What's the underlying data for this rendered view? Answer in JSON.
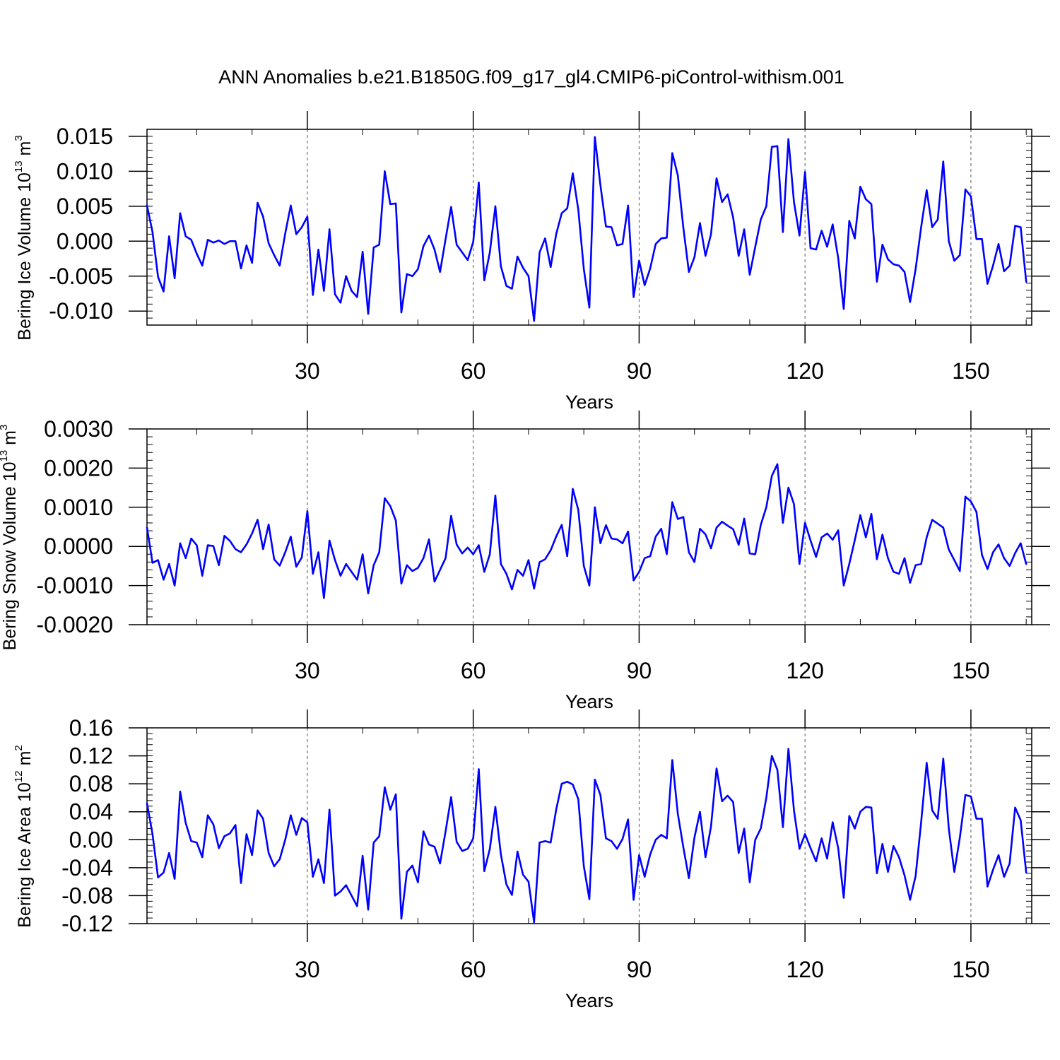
{
  "title": "ANN Anomalies b.e21.B1850G.f09_g17_gl4.CMIP6-piControl-withism.001",
  "chart_data": [
    {
      "type": "line",
      "title": "ANN Anomalies b.e21.B1850G.f09_g17_gl4.CMIP6-piControl-withism.001",
      "xlabel": "Years",
      "ylabel": {
        "main": "Bering Ice Volume 10",
        "sup": "13",
        "unit": " m",
        "unit_sup": "3"
      },
      "xlim": [
        1,
        161
      ],
      "ylim": [
        -0.012,
        0.016
      ],
      "xticks": [
        30,
        60,
        90,
        120,
        150
      ],
      "xtick_labels": [
        "30",
        "60",
        "90",
        "120",
        "150"
      ],
      "yticks": [
        -0.01,
        -0.005,
        0.0,
        0.005,
        0.01,
        0.015
      ],
      "ytick_labels": [
        "-0.010",
        "-0.005",
        "0.000",
        "0.005",
        "0.010",
        "0.015"
      ],
      "grid": "vertical dashed at x ticks",
      "series": [
        {
          "name": "Bering Ice Volume",
          "color": "#0000ff",
          "x_start": 1,
          "values": [
            0.0051,
            0.0013,
            -0.0051,
            -0.0072,
            0.0007,
            -0.0053,
            0.004,
            0.0007,
            0.0002,
            -0.0018,
            -0.0035,
            0.0002,
            -0.0002,
            0.0001,
            -0.0004,
            0.0,
            0.0,
            -0.0039,
            -0.0006,
            -0.0031,
            0.0055,
            0.0035,
            -0.0003,
            -0.002,
            -0.0035,
            0.0011,
            0.0051,
            0.001,
            0.002,
            0.0035,
            -0.0077,
            -0.0012,
            -0.0071,
            0.0017,
            -0.0076,
            -0.0088,
            -0.005,
            -0.0071,
            -0.008,
            -0.0015,
            -0.0104,
            -0.0009,
            -0.0005,
            0.01,
            0.0053,
            0.0054,
            -0.0102,
            -0.0047,
            -0.005,
            -0.004,
            -0.0007,
            0.0008,
            -0.0012,
            -0.0044,
            0.0003,
            0.0049,
            -0.0005,
            -0.0016,
            -0.0027,
            -0.0001,
            0.0084,
            -0.0056,
            -0.0016,
            0.005,
            -0.0036,
            -0.0064,
            -0.0068,
            -0.0022,
            -0.0038,
            -0.005,
            -0.0114,
            -0.0016,
            0.0004,
            -0.0037,
            0.001,
            0.004,
            0.0047,
            0.0097,
            0.0045,
            -0.004,
            -0.0095,
            0.0149,
            0.008,
            0.0021,
            0.002,
            -0.0006,
            -0.0004,
            0.0051,
            -0.008,
            -0.0028,
            -0.0063,
            -0.0039,
            -0.0004,
            0.0004,
            0.0005,
            0.0126,
            0.0094,
            0.0019,
            -0.0044,
            -0.0023,
            0.0026,
            -0.0021,
            0.001,
            0.009,
            0.0056,
            0.0067,
            0.0034,
            -0.0021,
            0.0017,
            -0.0048,
            -0.0008,
            0.0031,
            0.005,
            0.0135,
            0.0136,
            0.0013,
            0.0146,
            0.0056,
            0.0008,
            0.0099,
            -0.001,
            -0.0012,
            0.0015,
            -0.0008,
            0.0024,
            -0.0024,
            -0.0097,
            0.0029,
            0.0004,
            0.0078,
            0.006,
            0.0053,
            -0.0058,
            -0.0005,
            -0.0026,
            -0.0033,
            -0.0035,
            -0.0044,
            -0.0087,
            -0.004,
            0.002,
            0.0073,
            0.002,
            0.0031,
            0.0114,
            0.0,
            -0.0028,
            -0.002,
            0.0074,
            0.0064,
            0.0003,
            0.0003,
            -0.0061,
            -0.0035,
            -0.0004,
            -0.0043,
            -0.0035,
            0.0022,
            0.002,
            -0.0058
          ]
        }
      ]
    },
    {
      "type": "line",
      "xlabel": "Years",
      "ylabel": {
        "main": "Bering Snow Volume 10",
        "sup": "13",
        "unit": " m",
        "unit_sup": "3"
      },
      "xlim": [
        1,
        161
      ],
      "ylim": [
        -0.002,
        0.003
      ],
      "xticks": [
        30,
        60,
        90,
        120,
        150
      ],
      "xtick_labels": [
        "30",
        "60",
        "90",
        "120",
        "150"
      ],
      "yticks": [
        -0.002,
        -0.001,
        0.0,
        0.001,
        0.002,
        0.003
      ],
      "ytick_labels": [
        "-0.0020",
        "-0.0010",
        "0.0000",
        "0.0010",
        "0.0020",
        "0.0030"
      ],
      "grid": "vertical dashed at x ticks",
      "series": [
        {
          "name": "Bering Snow Volume",
          "color": "#0000ff",
          "x_start": 1,
          "values": [
            0.00048,
            -0.00042,
            -0.00035,
            -0.00085,
            -0.00045,
            -0.001,
            8e-05,
            -0.0003,
            0.0002,
            3e-05,
            -0.00075,
            3e-05,
            1e-05,
            -0.00048,
            0.00027,
            0.00014,
            -7e-05,
            -0.00015,
            5e-05,
            0.00033,
            0.00068,
            -7e-05,
            0.00056,
            -0.00033,
            -0.00049,
            -0.00015,
            0.00025,
            -0.00052,
            -0.00028,
            0.0009,
            -0.0007,
            -0.00015,
            -0.00132,
            0.00015,
            -0.00035,
            -0.00075,
            -0.00045,
            -0.00065,
            -0.00085,
            -0.0002,
            -0.0012,
            -0.00048,
            -0.00015,
            0.00123,
            0.00103,
            0.00066,
            -0.00095,
            -0.00048,
            -0.00063,
            -0.00055,
            -0.0003,
            0.00018,
            -0.0009,
            -0.0006,
            -0.0003,
            0.00078,
            5e-05,
            -0.00018,
            -3e-05,
            -0.0002,
            3e-05,
            -0.00065,
            -0.0002,
            0.0013,
            -0.00045,
            -0.0007,
            -0.0011,
            -0.0006,
            -0.00075,
            -0.00035,
            -0.00108,
            -0.0004,
            -0.00033,
            -0.0001,
            0.00025,
            0.00055,
            -0.00025,
            0.00147,
            0.00093,
            -0.0005,
            -0.001,
            0.001,
            8e-05,
            0.00054,
            0.0002,
            0.00018,
            8e-05,
            0.00038,
            -0.00087,
            -0.00065,
            -0.0003,
            -0.00025,
            0.00025,
            0.00045,
            -0.0002,
            0.00113,
            0.0007,
            0.00075,
            -0.00015,
            -0.0004,
            0.00045,
            0.00031,
            -5e-05,
            0.00048,
            0.00063,
            0.00053,
            0.00044,
            4e-05,
            0.00071,
            -0.00018,
            -0.0002,
            0.00055,
            0.001,
            0.0018,
            0.0021,
            0.0006,
            0.0015,
            0.00108,
            -0.00045,
            0.0006,
            0.00015,
            -0.00027,
            0.00023,
            0.00033,
            0.00017,
            0.00041,
            -0.001,
            -0.00045,
            0.00016,
            0.0008,
            0.00023,
            0.00083,
            -0.00033,
            0.0003,
            -0.0003,
            -0.00065,
            -0.0007,
            -0.0003,
            -0.00093,
            -0.00048,
            -0.00045,
            0.00023,
            0.00068,
            0.00058,
            0.00048,
            -8e-05,
            -0.00035,
            -0.00063,
            0.00127,
            0.00115,
            0.00088,
            -0.00022,
            -0.00058,
            -0.00015,
            5e-05,
            -0.0003,
            -0.0005,
            -0.00017,
            8e-05,
            -0.00045
          ]
        }
      ]
    },
    {
      "type": "line",
      "xlabel": "Years",
      "ylabel": {
        "main": "Bering Ice Area 10",
        "sup": "12",
        "unit": " m",
        "unit_sup": "2"
      },
      "xlim": [
        1,
        161
      ],
      "ylim": [
        -0.12,
        0.16
      ],
      "xticks": [
        30,
        60,
        90,
        120,
        150
      ],
      "xtick_labels": [
        "30",
        "60",
        "90",
        "120",
        "150"
      ],
      "yticks": [
        -0.12,
        -0.08,
        -0.04,
        0.0,
        0.04,
        0.08,
        0.12,
        0.16
      ],
      "ytick_labels": [
        "-0.12",
        "-0.08",
        "-0.04",
        "0.00",
        "0.04",
        "0.08",
        "0.12",
        "0.16"
      ],
      "grid": "vertical dashed at x ticks",
      "series": [
        {
          "name": "Bering Ice Area",
          "color": "#0000ff",
          "x_start": 1,
          "values": [
            0.052,
            0.008,
            -0.054,
            -0.047,
            -0.019,
            -0.056,
            0.069,
            0.024,
            -0.002,
            -0.004,
            -0.025,
            0.035,
            0.022,
            -0.012,
            0.005,
            0.009,
            0.021,
            -0.062,
            0.008,
            -0.022,
            0.042,
            0.03,
            -0.019,
            -0.038,
            -0.028,
            0.0,
            0.035,
            0.007,
            0.031,
            0.025,
            -0.053,
            -0.028,
            -0.062,
            0.043,
            -0.08,
            -0.074,
            -0.065,
            -0.08,
            -0.095,
            -0.023,
            -0.1,
            -0.004,
            0.005,
            0.075,
            0.043,
            0.065,
            -0.113,
            -0.046,
            -0.037,
            -0.061,
            0.012,
            -0.007,
            -0.01,
            -0.034,
            0.012,
            0.061,
            -0.003,
            -0.016,
            -0.013,
            0.002,
            0.101,
            -0.045,
            -0.013,
            0.047,
            -0.021,
            -0.064,
            -0.079,
            -0.017,
            -0.05,
            -0.06,
            -0.118,
            -0.004,
            -0.002,
            -0.004,
            0.043,
            0.08,
            0.083,
            0.079,
            0.058,
            -0.038,
            -0.085,
            0.086,
            0.064,
            0.002,
            -0.002,
            -0.013,
            0.001,
            0.029,
            -0.086,
            -0.022,
            -0.053,
            -0.021,
            0.0,
            0.007,
            0.002,
            0.114,
            0.037,
            -0.011,
            -0.055,
            0.003,
            0.04,
            -0.025,
            0.019,
            0.102,
            0.055,
            0.063,
            0.054,
            -0.019,
            0.016,
            -0.061,
            0.0,
            0.016,
            0.06,
            0.12,
            0.1,
            0.018,
            0.13,
            0.042,
            -0.013,
            0.008,
            -0.012,
            -0.031,
            0.002,
            -0.027,
            0.025,
            -0.012,
            -0.083,
            0.034,
            0.016,
            0.04,
            0.047,
            0.046,
            -0.048,
            -0.006,
            -0.046,
            -0.009,
            -0.025,
            -0.051,
            -0.086,
            -0.052,
            0.025,
            0.11,
            0.042,
            0.03,
            0.116,
            0.016,
            -0.046,
            0.003,
            0.064,
            0.062,
            0.03,
            0.03,
            -0.067,
            -0.043,
            -0.022,
            -0.053,
            -0.034,
            0.046,
            0.028,
            -0.047
          ]
        }
      ]
    }
  ]
}
